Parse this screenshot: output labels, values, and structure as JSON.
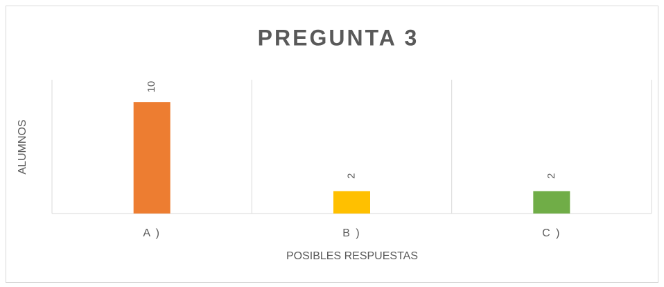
{
  "chart_data": {
    "type": "bar",
    "title": "PREGUNTA 3",
    "x_label": "POSIBLES RESPUESTAS",
    "y_label": "ALUMNOS",
    "categories": [
      "A )",
      "B )",
      "C )"
    ],
    "values": [
      10,
      2,
      2
    ],
    "colors": [
      "#ed7d31",
      "#ffc000",
      "#70ad47"
    ],
    "ylim": [
      0,
      12
    ],
    "category_grid": true
  }
}
